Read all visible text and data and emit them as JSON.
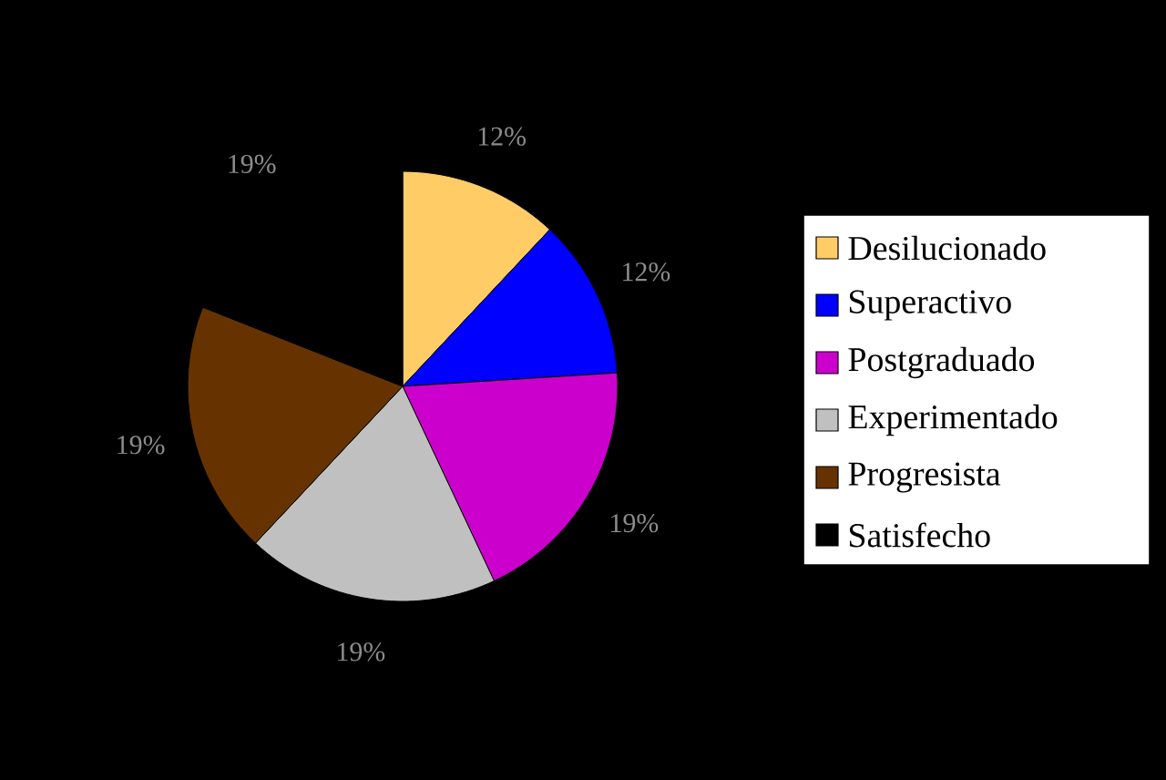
{
  "chart_data": {
    "type": "pie",
    "categories": [
      "Desilucionado",
      "Superactivo",
      "Postgraduado",
      "Experimentado",
      "Progresista",
      "Satisfecho"
    ],
    "values": [
      12,
      12,
      19,
      19,
      19,
      19
    ],
    "colors": [
      "#ffcc66",
      "#0000ff",
      "#cc00cc",
      "#c0c0c0",
      "#663300",
      "#000000"
    ],
    "value_labels": [
      "12%",
      "12%",
      "19%",
      "19%",
      "19%",
      "19%"
    ],
    "legend": "right"
  }
}
